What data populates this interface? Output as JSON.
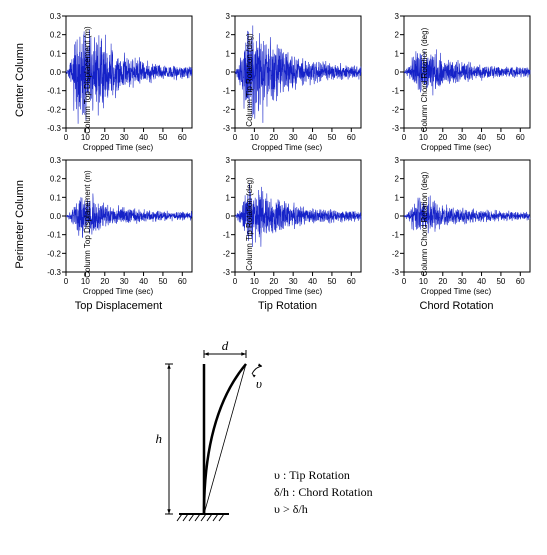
{
  "series_color": "#1522c8",
  "background_color": "#ffffff",
  "axis_color": "#000000",
  "tick_color": "#444444",
  "row_labels": [
    "Center Column",
    "Perimeter Column"
  ],
  "col_titles": [
    "Top Displacement",
    "Tip Rotation",
    "Chord Rotation"
  ],
  "panels": [
    {
      "ylabel": "Column Top Displacement (m)",
      "xlabel": "Cropped Time (sec)",
      "ylim": [
        -0.3,
        0.3
      ],
      "ystep": 0.1,
      "xlim": [
        0,
        65
      ],
      "xstep": 10,
      "envelope_peak": 0.28,
      "envelope_floor": 0.03,
      "y_decimals": 1
    },
    {
      "ylabel": "Column Tip Rotation (deg)",
      "xlabel": "Cropped Time (sec)",
      "ylim": [
        -3,
        3
      ],
      "ystep": 1,
      "xlim": [
        0,
        65
      ],
      "xstep": 10,
      "envelope_peak": 2.6,
      "envelope_floor": 0.3,
      "y_decimals": 0
    },
    {
      "ylabel": "Column Chord Rotation (deg)",
      "xlabel": "Cropped Time (sec)",
      "ylim": [
        -3,
        3
      ],
      "ystep": 1,
      "xlim": [
        0,
        65
      ],
      "xstep": 10,
      "envelope_peak": 1.3,
      "envelope_floor": 0.25,
      "y_decimals": 0
    },
    {
      "ylabel": "Column Top Displacement (m)",
      "xlabel": "Cropped Time (sec)",
      "ylim": [
        -0.3,
        0.3
      ],
      "ystep": 0.1,
      "xlim": [
        0,
        65
      ],
      "xstep": 10,
      "envelope_peak": 0.12,
      "envelope_floor": 0.02,
      "y_decimals": 1
    },
    {
      "ylabel": "Column Tip Rotation (deg)",
      "xlabel": "Cropped Time (sec)",
      "ylim": [
        -3,
        3
      ],
      "ystep": 1,
      "xlim": [
        0,
        65
      ],
      "xstep": 10,
      "envelope_peak": 1.6,
      "envelope_floor": 0.25,
      "y_decimals": 0
    },
    {
      "ylabel": "Column Chord Rotation (deg)",
      "xlabel": "Cropped Time (sec)",
      "ylim": [
        -3,
        3
      ],
      "ystep": 1,
      "xlim": [
        0,
        65
      ],
      "xstep": 10,
      "envelope_peak": 1.0,
      "envelope_floor": 0.2,
      "y_decimals": 0
    }
  ],
  "diagram": {
    "d_label": "d",
    "h_label": "h",
    "upsilon": "υ",
    "tip_line": "υ :  Tip Rotation",
    "chord_line": "δ/h :  Chord Rotation",
    "ineq_line": "υ > δ/h",
    "ground_width": 50,
    "column_height": 150,
    "deflection": 42,
    "line_color": "#000000",
    "italic_font": "italic 13px 'Times New Roman', serif",
    "text_font": "12px 'Times New Roman', serif"
  }
}
